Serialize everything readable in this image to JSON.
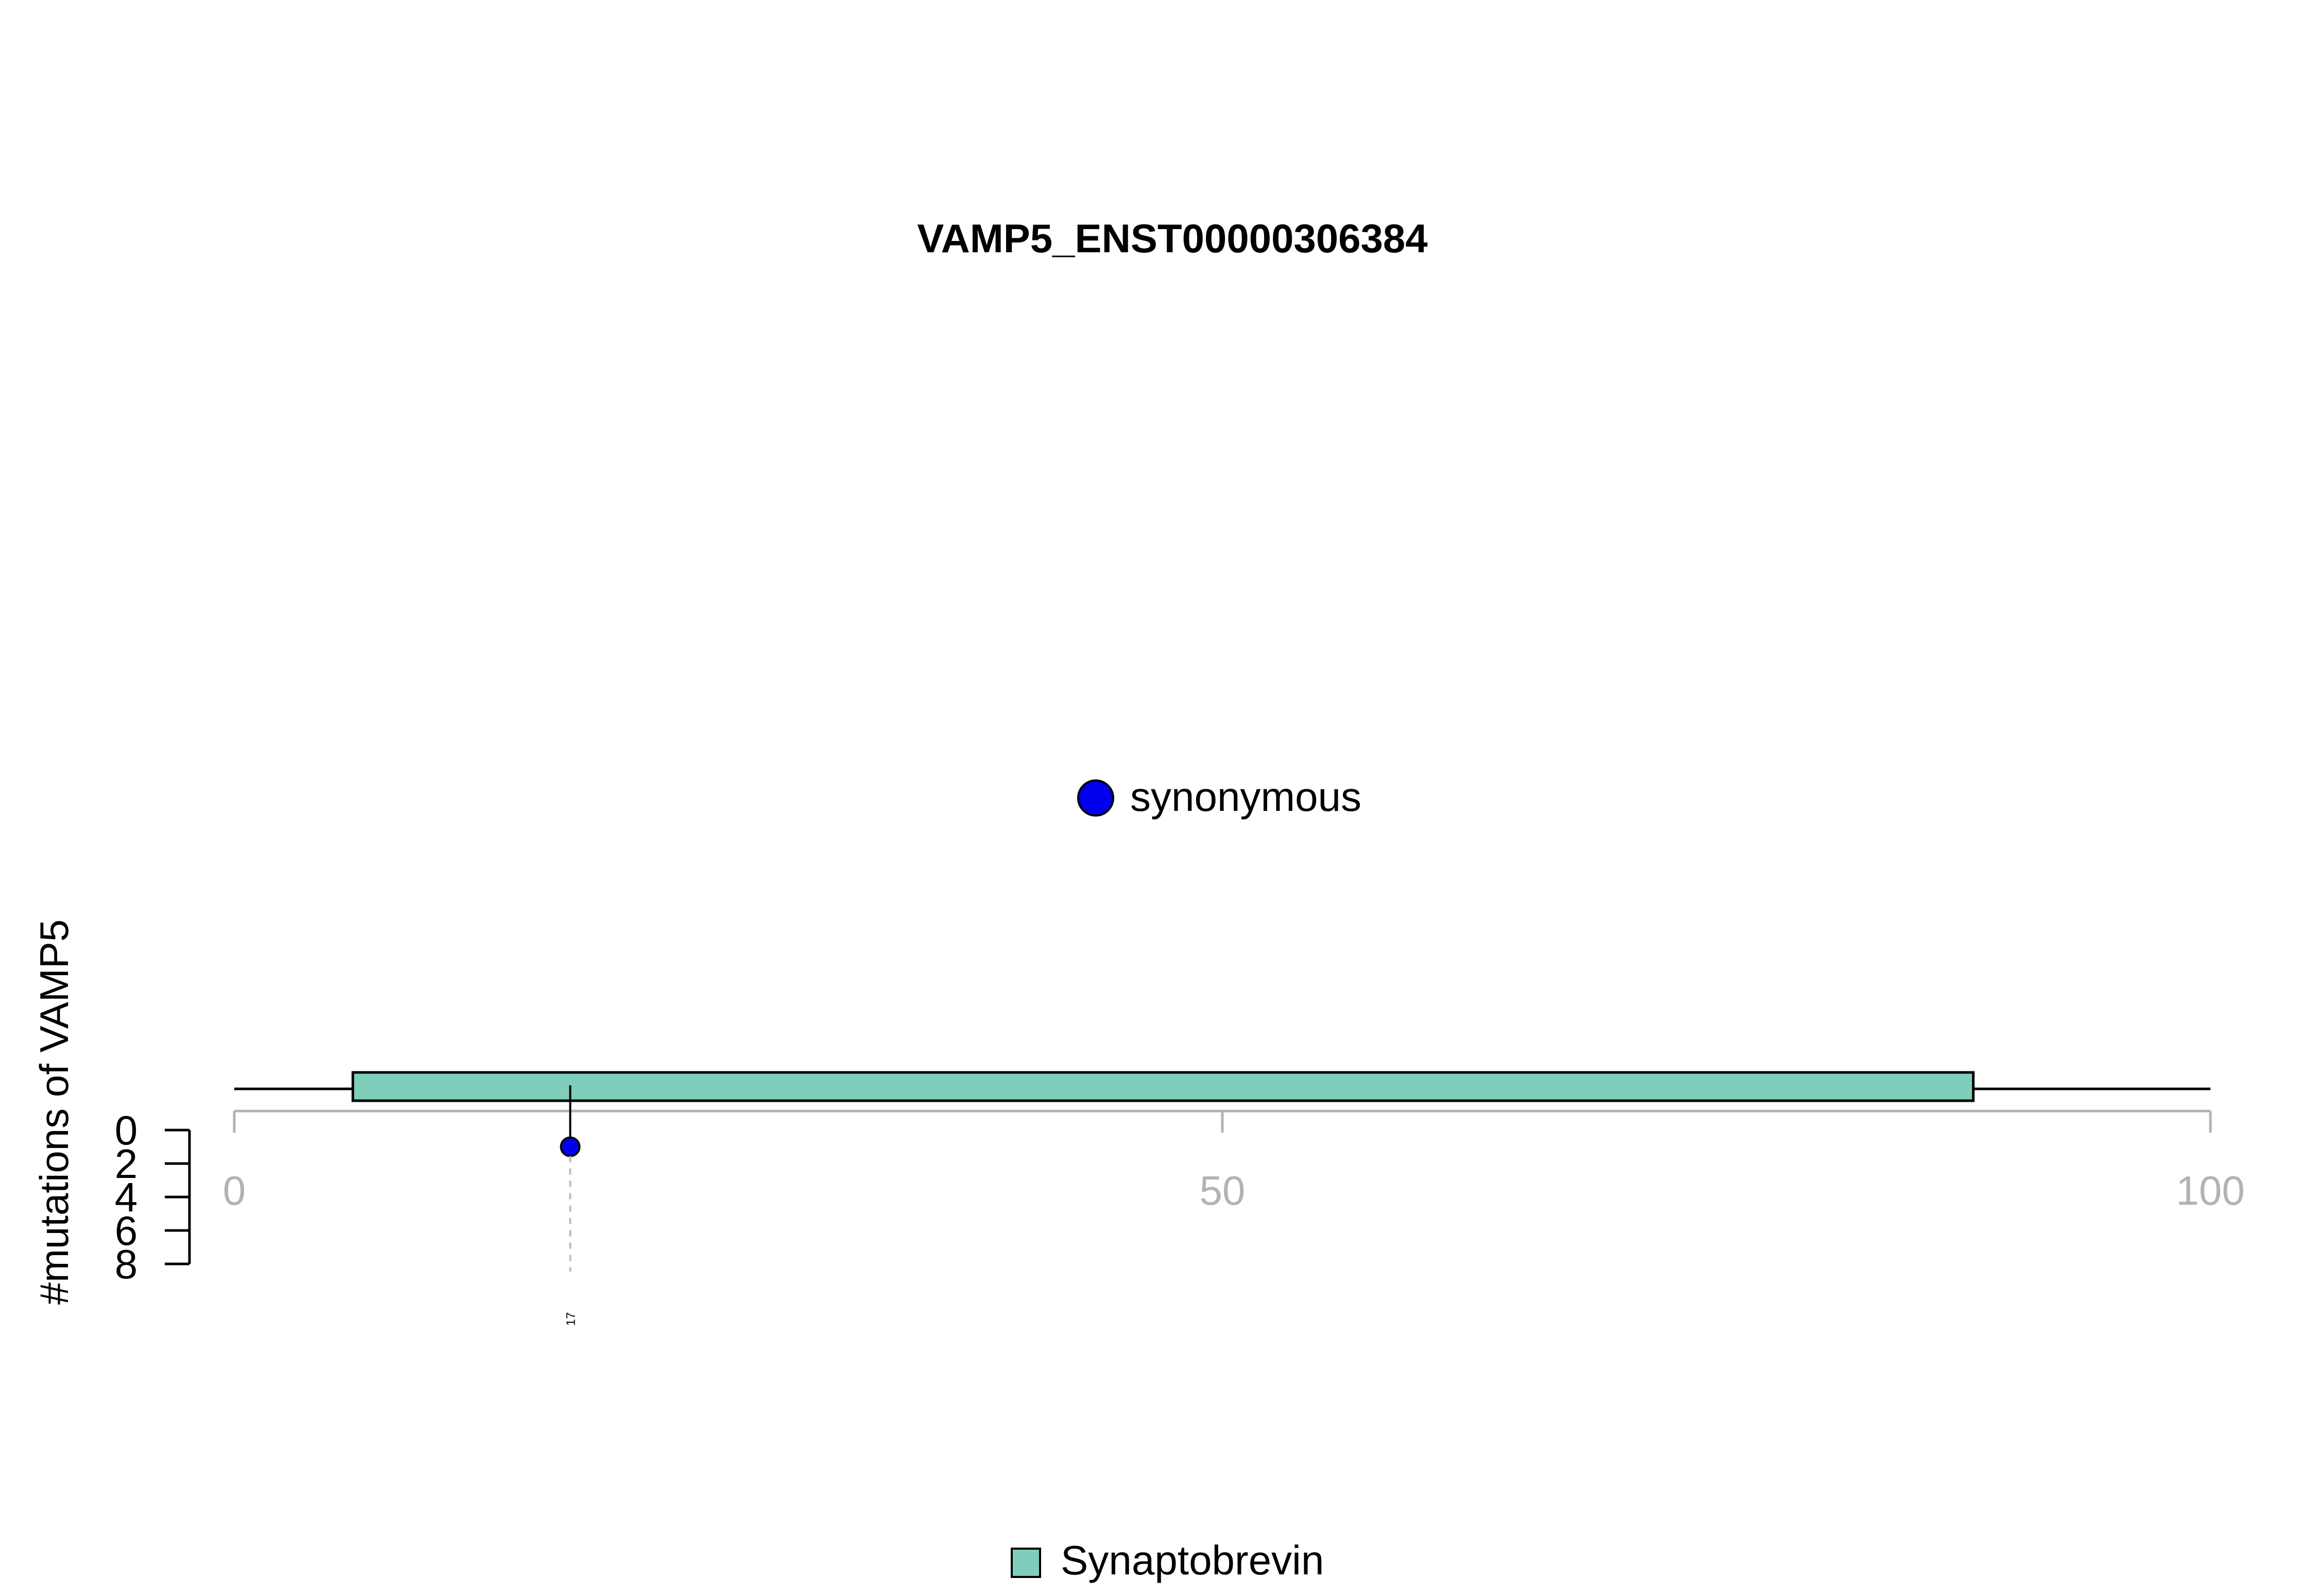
{
  "chart_data": {
    "type": "lollipop",
    "title": "VAMP5_ENST00000306384",
    "ylabel": "#mutations of VAMP5",
    "xlim": [
      0,
      100
    ],
    "x_ticks": [
      0,
      50,
      100
    ],
    "y_ticks": [
      0,
      2,
      4,
      6,
      8
    ],
    "ylim": [
      0,
      8
    ],
    "protein_length": 100,
    "domains": [
      {
        "name": "Synaptobrevin",
        "start": 6,
        "end": 88,
        "color": "#7fcdbb"
      }
    ],
    "mutations": [
      {
        "position": 17,
        "count": 1,
        "type": "synonymous",
        "color": "#0000ee",
        "label": "17"
      }
    ],
    "legend_mutation_types": [
      {
        "label": "synonymous",
        "color": "#0000ee"
      }
    ],
    "legend_domains": [
      {
        "label": "Synaptobrevin",
        "color": "#7fcdbb"
      }
    ]
  }
}
